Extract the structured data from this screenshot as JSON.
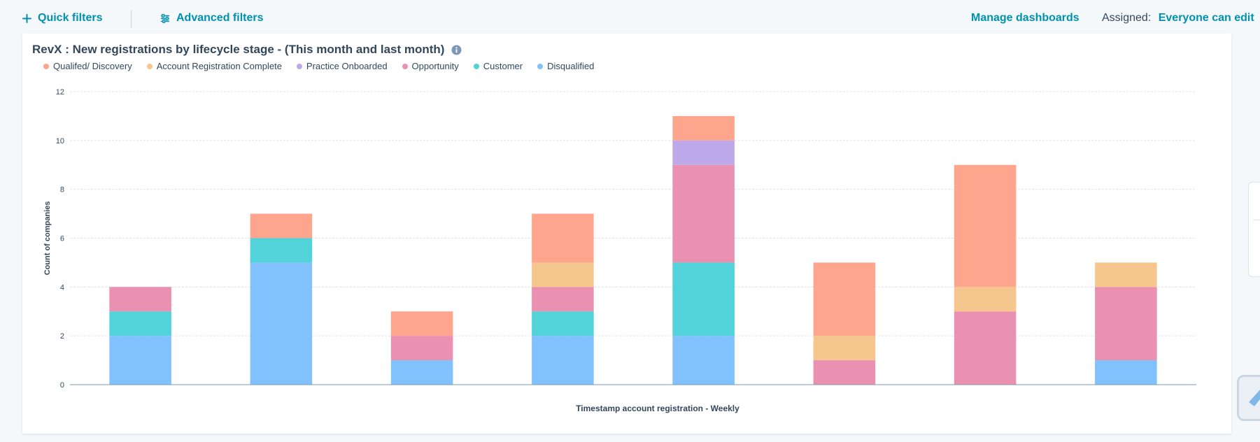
{
  "toolbar": {
    "quick_filters": "Quick filters",
    "advanced_filters": "Advanced filters",
    "manage_dashboards": "Manage dashboards",
    "assigned_label": "Assigned:",
    "assigned_value": "Everyone can edit"
  },
  "icons": {
    "quick_filters": "plus-icon",
    "advanced_filters": "sliders-icon",
    "title_info": "info-icon"
  },
  "colors": {
    "link": "#0091ae",
    "text": "#33475b"
  },
  "report": {
    "title": "RevX : New registrations by lifecycle stage - (This month and last month)"
  },
  "chart_data": {
    "type": "bar",
    "stacked": true,
    "xlabel": "Timestamp account registration - Weekly",
    "ylabel": "Count of companies",
    "ylim": [
      0,
      12
    ],
    "yticks": [
      0,
      2,
      4,
      6,
      8,
      10,
      12
    ],
    "grid": true,
    "legend_position": "top-left",
    "categories": [
      "",
      "",
      "",
      "",
      "",
      "",
      "",
      ""
    ],
    "series": [
      {
        "name": "Disqualified",
        "color": "#81c1fd",
        "values": [
          2,
          5,
          1,
          2,
          2,
          0,
          0,
          1
        ]
      },
      {
        "name": "Customer",
        "color": "#51d3d9",
        "values": [
          1,
          1,
          0,
          1,
          3,
          0,
          0,
          0
        ]
      },
      {
        "name": "Opportunity",
        "color": "#ea90b1",
        "values": [
          1,
          0,
          1,
          1,
          4,
          1,
          3,
          3
        ]
      },
      {
        "name": "Practice Onboarded",
        "color": "#bda9ea",
        "values": [
          0,
          0,
          0,
          0,
          1,
          0,
          0,
          0
        ]
      },
      {
        "name": "Account Registration Complete",
        "color": "#f5c78e",
        "values": [
          0,
          0,
          0,
          1,
          0,
          1,
          1,
          1
        ]
      },
      {
        "name": "Qualifed/ Discovery",
        "color": "#fea58e",
        "values": [
          0,
          1,
          1,
          2,
          1,
          3,
          5,
          0
        ]
      }
    ]
  }
}
